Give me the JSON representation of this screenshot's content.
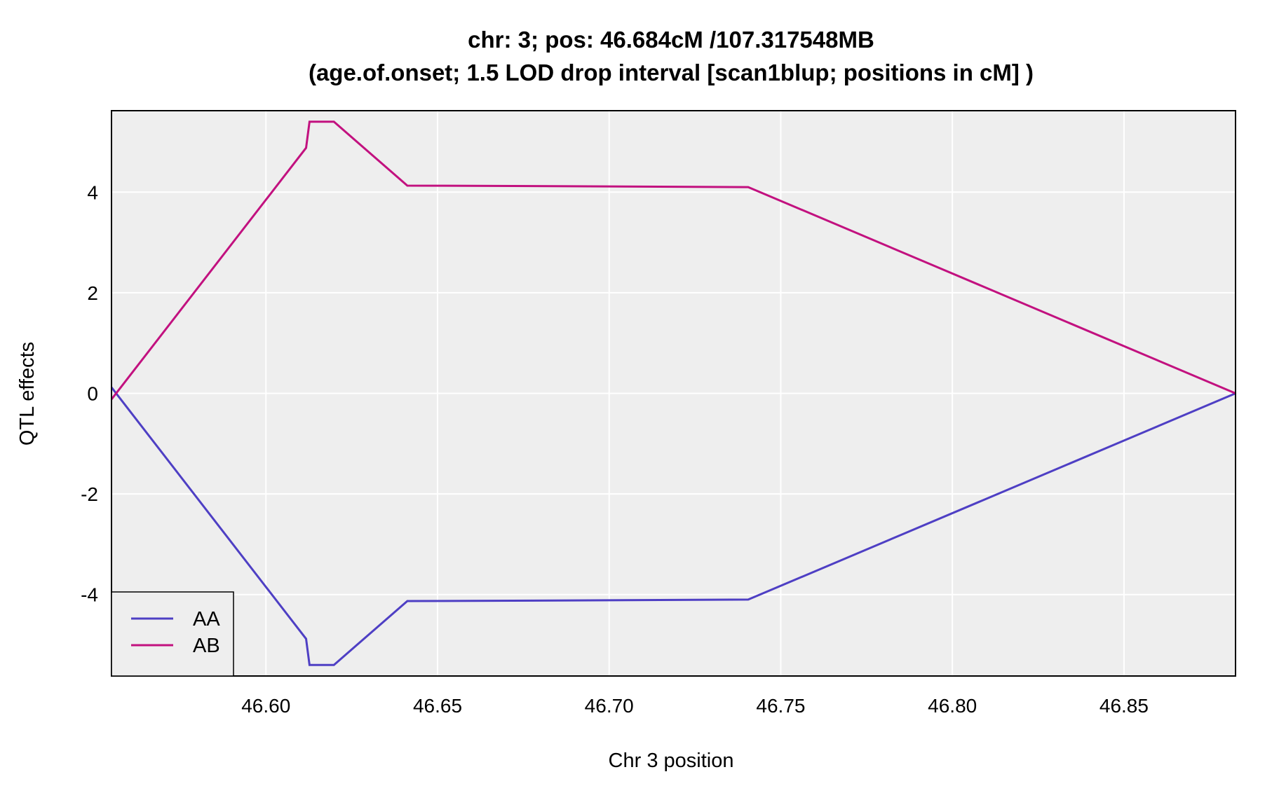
{
  "chart_data": {
    "type": "line",
    "title": "chr: 3; pos: 46.684cM /107.317548MB",
    "subtitle": "(age.of.onset; 1.5 LOD drop interval [scan1blup; positions in cM] )",
    "xlabel": "Chr 3 position",
    "ylabel": "QTL effects",
    "xlim": [
      46.555,
      46.8825
    ],
    "ylim": [
      -5.62,
      5.62
    ],
    "xticks": [
      46.6,
      46.65,
      46.7,
      46.75,
      46.8,
      46.85
    ],
    "xtick_labels": [
      "46.60",
      "46.65",
      "46.70",
      "46.75",
      "46.80",
      "46.85"
    ],
    "yticks": [
      -4,
      -2,
      0,
      2,
      4
    ],
    "ytick_labels": [
      "-4",
      "-2",
      "0",
      "2",
      "4"
    ],
    "grid": true,
    "legend_position": "bottom-left",
    "background": "#eeeeee",
    "series": [
      {
        "name": "AA",
        "color": "#4e3fc4",
        "x": [
          46.555,
          46.6117,
          46.6127,
          46.6198,
          46.6412,
          46.684,
          46.7405,
          46.8825
        ],
        "y": [
          0.12,
          -4.88,
          -5.4,
          -5.4,
          -4.13,
          -4.12,
          -4.1,
          0
        ]
      },
      {
        "name": "AB",
        "color": "#c2117f",
        "x": [
          46.555,
          46.6117,
          46.6127,
          46.6198,
          46.6412,
          46.684,
          46.7405,
          46.8825
        ],
        "y": [
          -0.12,
          4.88,
          5.4,
          5.4,
          4.13,
          4.12,
          4.1,
          0
        ]
      }
    ]
  }
}
